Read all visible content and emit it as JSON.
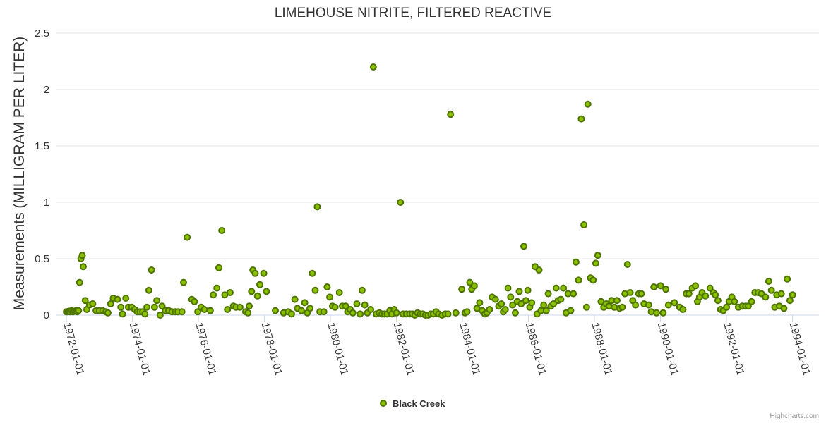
{
  "chart_data": {
    "type": "scatter",
    "title": "LIMEHOUSE NITRITE, FILTERED REACTIVE",
    "ylabel": "Measurements (MILLIGRAM PER LITER)",
    "xlabel": "",
    "ylim": [
      0,
      2.5
    ],
    "yticks": [
      "0",
      "0.5",
      "1",
      "1.5",
      "2",
      "2.5"
    ],
    "xlim": [
      1971.7,
      1994.8
    ],
    "xticks": [
      {
        "label": "1972-01-01",
        "value": 1972
      },
      {
        "label": "1974-01-01",
        "value": 1974
      },
      {
        "label": "1976-01-01",
        "value": 1976
      },
      {
        "label": "1978-01-01",
        "value": 1978
      },
      {
        "label": "1980-01-01",
        "value": 1980
      },
      {
        "label": "1982-01-01",
        "value": 1982
      },
      {
        "label": "1984-01-01",
        "value": 1984
      },
      {
        "label": "1986-01-01",
        "value": 1986
      },
      {
        "label": "1988-01-01",
        "value": 1988
      },
      {
        "label": "1990-01-01",
        "value": 1990
      },
      {
        "label": "1992-01-01",
        "value": 1992
      },
      {
        "label": "1994-01-01",
        "value": 1994
      }
    ],
    "legend": {
      "position": "bottom-center"
    },
    "color": "#8bc000",
    "series": [
      {
        "name": "Black Creek",
        "points": [
          [
            1972.0,
            0.03
          ],
          [
            1972.04,
            0.03
          ],
          [
            1972.08,
            0.035
          ],
          [
            1972.12,
            0.03
          ],
          [
            1972.16,
            0.04
          ],
          [
            1972.2,
            0.03
          ],
          [
            1972.25,
            0.035
          ],
          [
            1972.3,
            0.04
          ],
          [
            1972.33,
            0.03
          ],
          [
            1972.37,
            0.04
          ],
          [
            1972.4,
            0.29
          ],
          [
            1972.44,
            0.5
          ],
          [
            1972.48,
            0.53
          ],
          [
            1972.51,
            0.43
          ],
          [
            1972.57,
            0.13
          ],
          [
            1972.62,
            0.05
          ],
          [
            1972.7,
            0.09
          ],
          [
            1972.8,
            0.1
          ],
          [
            1972.9,
            0.04
          ],
          [
            1973.0,
            0.04
          ],
          [
            1973.1,
            0.04
          ],
          [
            1973.2,
            0.03
          ],
          [
            1973.26,
            0.02
          ],
          [
            1973.34,
            0.1
          ],
          [
            1973.42,
            0.15
          ],
          [
            1973.55,
            0.14
          ],
          [
            1973.65,
            0.07
          ],
          [
            1973.7,
            0.01
          ],
          [
            1973.8,
            0.15
          ],
          [
            1973.88,
            0.07
          ],
          [
            1973.98,
            0.07
          ],
          [
            1974.07,
            0.05
          ],
          [
            1974.15,
            0.03
          ],
          [
            1974.23,
            0.03
          ],
          [
            1974.31,
            0.03
          ],
          [
            1974.38,
            0.01
          ],
          [
            1974.44,
            0.07
          ],
          [
            1974.5,
            0.22
          ],
          [
            1974.58,
            0.4
          ],
          [
            1974.67,
            0.07
          ],
          [
            1974.74,
            0.13
          ],
          [
            1974.84,
            0.0
          ],
          [
            1974.9,
            0.08
          ],
          [
            1975.0,
            0.04
          ],
          [
            1975.1,
            0.04
          ],
          [
            1975.2,
            0.03
          ],
          [
            1975.3,
            0.03
          ],
          [
            1975.38,
            0.03
          ],
          [
            1975.5,
            0.03
          ],
          [
            1975.55,
            0.29
          ],
          [
            1975.66,
            0.69
          ],
          [
            1975.8,
            0.14
          ],
          [
            1975.88,
            0.12
          ],
          [
            1975.98,
            0.03
          ],
          [
            1976.08,
            0.07
          ],
          [
            1976.18,
            0.05
          ],
          [
            1976.36,
            0.04
          ],
          [
            1976.45,
            0.18
          ],
          [
            1976.56,
            0.24
          ],
          [
            1976.62,
            0.42
          ],
          [
            1976.71,
            0.75
          ],
          [
            1976.8,
            0.18
          ],
          [
            1976.88,
            0.05
          ],
          [
            1976.96,
            0.2
          ],
          [
            1977.06,
            0.08
          ],
          [
            1977.14,
            0.07
          ],
          [
            1977.26,
            0.07
          ],
          [
            1977.43,
            0.03
          ],
          [
            1977.5,
            0.02
          ],
          [
            1977.54,
            0.08
          ],
          [
            1977.61,
            0.21
          ],
          [
            1977.65,
            0.4
          ],
          [
            1977.72,
            0.37
          ],
          [
            1977.79,
            0.17
          ],
          [
            1977.86,
            0.27
          ],
          [
            1977.98,
            0.37
          ],
          [
            1978.06,
            0.21
          ],
          [
            1978.33,
            0.04
          ],
          [
            1978.58,
            0.02
          ],
          [
            1978.72,
            0.03
          ],
          [
            1978.82,
            0.01
          ],
          [
            1978.92,
            0.14
          ],
          [
            1979.0,
            0.06
          ],
          [
            1979.12,
            0.04
          ],
          [
            1979.22,
            0.11
          ],
          [
            1979.3,
            0.02
          ],
          [
            1979.38,
            0.06
          ],
          [
            1979.45,
            0.37
          ],
          [
            1979.54,
            0.22
          ],
          [
            1979.6,
            0.96
          ],
          [
            1979.68,
            0.03
          ],
          [
            1979.8,
            0.03
          ],
          [
            1979.9,
            0.25
          ],
          [
            1979.98,
            0.16
          ],
          [
            1980.06,
            0.08
          ],
          [
            1980.14,
            0.07
          ],
          [
            1980.27,
            0.2
          ],
          [
            1980.36,
            0.08
          ],
          [
            1980.46,
            0.08
          ],
          [
            1980.52,
            0.03
          ],
          [
            1980.6,
            0.05
          ],
          [
            1980.68,
            0.02
          ],
          [
            1980.8,
            0.1
          ],
          [
            1980.9,
            0.01
          ],
          [
            1980.96,
            0.22
          ],
          [
            1981.04,
            0.09
          ],
          [
            1981.12,
            0.02
          ],
          [
            1981.22,
            0.05
          ],
          [
            1981.3,
            2.2
          ],
          [
            1981.39,
            0.01
          ],
          [
            1981.48,
            0.02
          ],
          [
            1981.56,
            0.01
          ],
          [
            1981.64,
            0.01
          ],
          [
            1981.72,
            0.01
          ],
          [
            1981.8,
            0.04
          ],
          [
            1981.86,
            0.01
          ],
          [
            1981.93,
            0.05
          ],
          [
            1982.0,
            0.02
          ],
          [
            1982.12,
            1.0
          ],
          [
            1982.2,
            0.01
          ],
          [
            1982.3,
            0.01
          ],
          [
            1982.4,
            0.01
          ],
          [
            1982.48,
            0.01
          ],
          [
            1982.56,
            0.0
          ],
          [
            1982.64,
            0.02
          ],
          [
            1982.72,
            0.01
          ],
          [
            1982.8,
            0.01
          ],
          [
            1982.88,
            0.0
          ],
          [
            1982.96,
            0.0
          ],
          [
            1983.04,
            0.01
          ],
          [
            1983.12,
            0.01
          ],
          [
            1983.2,
            0.03
          ],
          [
            1983.28,
            0.01
          ],
          [
            1983.38,
            0.0
          ],
          [
            1983.48,
            0.01
          ],
          [
            1983.56,
            0.01
          ],
          [
            1983.64,
            1.78
          ],
          [
            1983.8,
            0.02
          ],
          [
            1983.98,
            0.23
          ],
          [
            1984.08,
            0.02
          ],
          [
            1984.14,
            0.03
          ],
          [
            1984.22,
            0.29
          ],
          [
            1984.28,
            0.23
          ],
          [
            1984.36,
            0.26
          ],
          [
            1984.44,
            0.06
          ],
          [
            1984.52,
            0.11
          ],
          [
            1984.6,
            0.04
          ],
          [
            1984.68,
            0.01
          ],
          [
            1984.74,
            0.02
          ],
          [
            1984.82,
            0.05
          ],
          [
            1984.9,
            0.16
          ],
          [
            1985.0,
            0.14
          ],
          [
            1985.1,
            0.08
          ],
          [
            1985.18,
            0.1
          ],
          [
            1985.24,
            0.03
          ],
          [
            1985.3,
            0.05
          ],
          [
            1985.38,
            0.24
          ],
          [
            1985.46,
            0.16
          ],
          [
            1985.52,
            0.09
          ],
          [
            1985.6,
            0.02
          ],
          [
            1985.66,
            0.12
          ],
          [
            1985.72,
            0.21
          ],
          [
            1985.78,
            0.1
          ],
          [
            1985.86,
            0.61
          ],
          [
            1985.92,
            0.13
          ],
          [
            1985.98,
            0.22
          ],
          [
            1986.04,
            0.07
          ],
          [
            1986.1,
            0.11
          ],
          [
            1986.2,
            0.43
          ],
          [
            1986.26,
            0.01
          ],
          [
            1986.32,
            0.4
          ],
          [
            1986.38,
            0.04
          ],
          [
            1986.46,
            0.09
          ],
          [
            1986.54,
            0.04
          ],
          [
            1986.6,
            0.19
          ],
          [
            1986.68,
            0.08
          ],
          [
            1986.76,
            0.1
          ],
          [
            1986.84,
            0.24
          ],
          [
            1986.9,
            0.13
          ],
          [
            1986.98,
            0.14
          ],
          [
            1987.06,
            0.24
          ],
          [
            1987.14,
            0.02
          ],
          [
            1987.2,
            0.19
          ],
          [
            1987.28,
            0.04
          ],
          [
            1987.36,
            0.19
          ],
          [
            1987.44,
            0.47
          ],
          [
            1987.52,
            0.31
          ],
          [
            1987.6,
            1.74
          ],
          [
            1987.68,
            0.8
          ],
          [
            1987.76,
            0.07
          ],
          [
            1987.8,
            1.87
          ],
          [
            1987.88,
            0.33
          ],
          [
            1987.96,
            0.31
          ],
          [
            1988.04,
            0.46
          ],
          [
            1988.1,
            0.53
          ],
          [
            1988.2,
            0.12
          ],
          [
            1988.28,
            0.07
          ],
          [
            1988.36,
            0.1
          ],
          [
            1988.44,
            0.08
          ],
          [
            1988.52,
            0.13
          ],
          [
            1988.6,
            0.07
          ],
          [
            1988.68,
            0.13
          ],
          [
            1988.76,
            0.06
          ],
          [
            1988.84,
            0.07
          ],
          [
            1988.92,
            0.19
          ],
          [
            1989.0,
            0.45
          ],
          [
            1989.08,
            0.2
          ],
          [
            1989.16,
            0.13
          ],
          [
            1989.24,
            0.09
          ],
          [
            1989.34,
            0.19
          ],
          [
            1989.42,
            0.19
          ],
          [
            1989.5,
            0.1
          ],
          [
            1989.64,
            0.09
          ],
          [
            1989.72,
            0.03
          ],
          [
            1989.8,
            0.25
          ],
          [
            1989.88,
            0.02
          ],
          [
            1990.0,
            0.26
          ],
          [
            1990.08,
            0.02
          ],
          [
            1990.16,
            0.23
          ],
          [
            1990.24,
            0.09
          ],
          [
            1990.42,
            0.11
          ],
          [
            1990.58,
            0.07
          ],
          [
            1990.68,
            0.05
          ],
          [
            1990.78,
            0.19
          ],
          [
            1990.86,
            0.19
          ],
          [
            1990.96,
            0.24
          ],
          [
            1991.06,
            0.26
          ],
          [
            1991.12,
            0.12
          ],
          [
            1991.18,
            0.16
          ],
          [
            1991.26,
            0.2
          ],
          [
            1991.36,
            0.17
          ],
          [
            1991.5,
            0.24
          ],
          [
            1991.6,
            0.2
          ],
          [
            1991.66,
            0.18
          ],
          [
            1991.74,
            0.13
          ],
          [
            1991.82,
            0.05
          ],
          [
            1991.9,
            0.04
          ],
          [
            1992.0,
            0.07
          ],
          [
            1992.08,
            0.12
          ],
          [
            1992.16,
            0.16
          ],
          [
            1992.24,
            0.12
          ],
          [
            1992.36,
            0.07
          ],
          [
            1992.48,
            0.08
          ],
          [
            1992.58,
            0.08
          ],
          [
            1992.66,
            0.08
          ],
          [
            1992.76,
            0.12
          ],
          [
            1992.86,
            0.2
          ],
          [
            1992.96,
            0.2
          ],
          [
            1993.06,
            0.19
          ],
          [
            1993.18,
            0.16
          ],
          [
            1993.28,
            0.3
          ],
          [
            1993.36,
            0.22
          ],
          [
            1993.46,
            0.07
          ],
          [
            1993.52,
            0.18
          ],
          [
            1993.6,
            0.08
          ],
          [
            1993.66,
            0.19
          ],
          [
            1993.74,
            0.06
          ],
          [
            1993.84,
            0.32
          ],
          [
            1993.92,
            0.13
          ],
          [
            1994.0,
            0.18
          ]
        ]
      }
    ],
    "credits": "Highcharts.com"
  }
}
